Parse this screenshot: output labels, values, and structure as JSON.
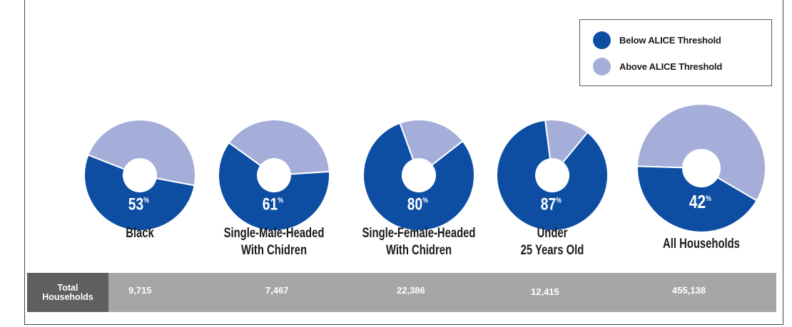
{
  "colors": {
    "below": "#0d4ea3",
    "above": "#a4aed8",
    "band": "#a6a6a6",
    "band_head": "#5f5f5f"
  },
  "legend": {
    "below_label": "Below ALICE Threshold",
    "above_label": "Above ALICE Threshold"
  },
  "chart_data": {
    "type": "pie",
    "variant": "donut",
    "series_names": [
      "Below ALICE Threshold",
      "Above ALICE Threshold"
    ],
    "categories": [
      {
        "label_lines": [
          "Black"
        ],
        "below_pct": 53,
        "above_pct": 47,
        "pct_label": "53",
        "total": "9,715"
      },
      {
        "label_lines": [
          "Single-Male-Headed",
          "With Chidren"
        ],
        "below_pct": 61,
        "above_pct": 39,
        "pct_label": "61",
        "total": "7,467"
      },
      {
        "label_lines": [
          "Single-Female-Headed",
          "With Chidren"
        ],
        "below_pct": 80,
        "above_pct": 20,
        "pct_label": "80",
        "total": "22,386"
      },
      {
        "label_lines": [
          "Under",
          "25 Years Old"
        ],
        "below_pct": 87,
        "above_pct": 13,
        "pct_label": "87",
        "total": "12,415"
      },
      {
        "label_lines": [
          "All Households"
        ],
        "below_pct": 42,
        "above_pct": 58,
        "pct_label": "42",
        "total": "455,138"
      }
    ],
    "pct_suffix": "%"
  },
  "table": {
    "row_header_line1": "Total",
    "row_header_line2": "Households"
  }
}
